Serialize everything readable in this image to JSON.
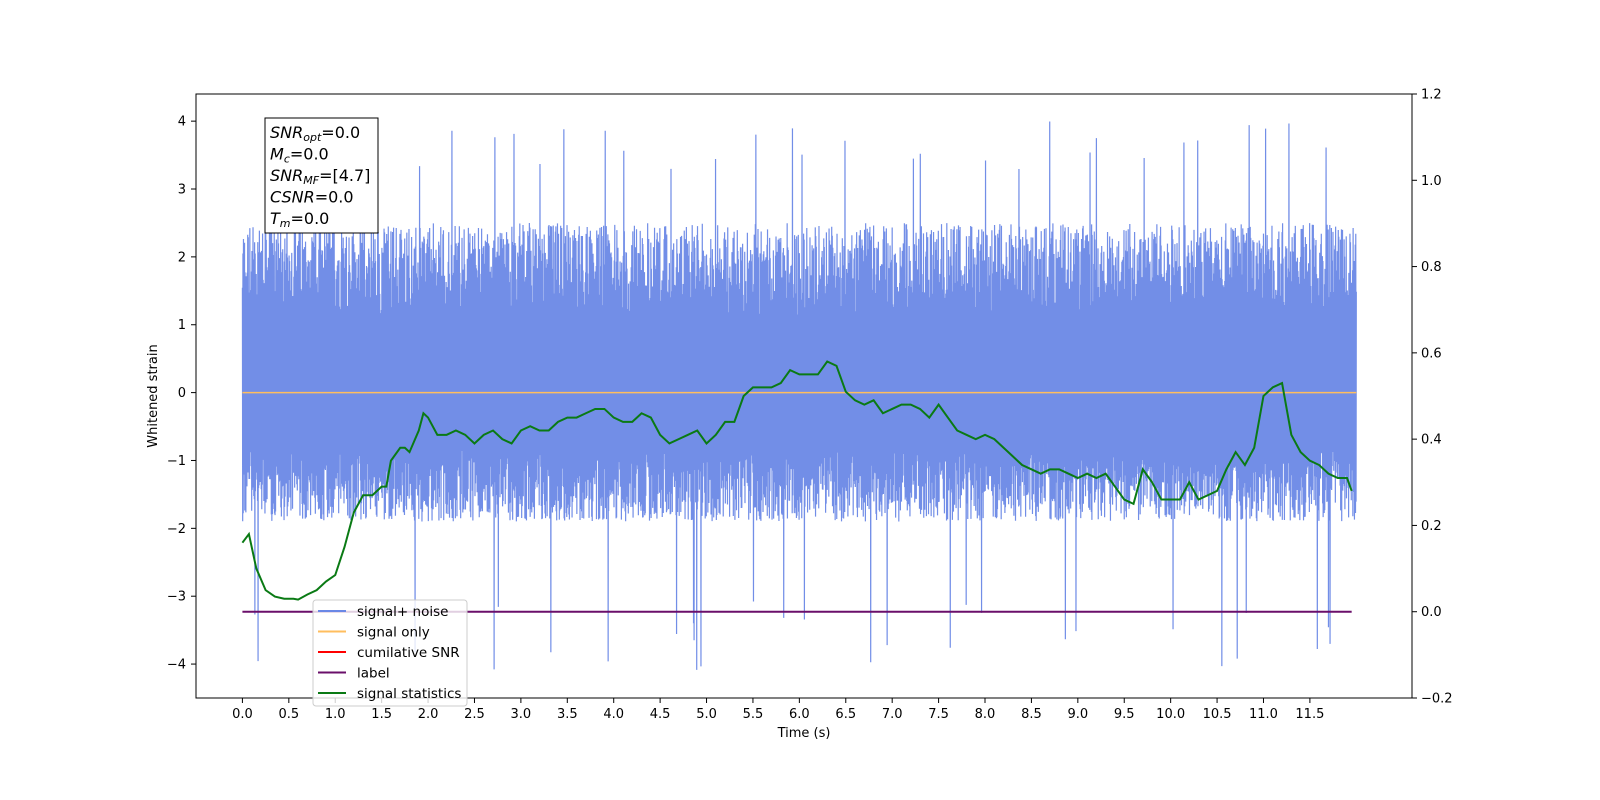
{
  "chart_data": {
    "type": "line",
    "xlabel": "Time (s)",
    "ylabel": "Whitened strain",
    "xlim": [
      -0.5,
      12.6
    ],
    "ylim_left": [
      -4.5,
      4.4
    ],
    "ylim_right": [
      -0.2,
      1.2
    ],
    "x_ticks": [
      0.0,
      0.5,
      1.0,
      1.5,
      2.0,
      2.5,
      3.0,
      3.5,
      4.0,
      4.5,
      5.0,
      5.5,
      6.0,
      6.5,
      7.0,
      7.5,
      8.0,
      8.5,
      9.0,
      9.5,
      10.0,
      10.5,
      11.0,
      11.5
    ],
    "x_tick_labels": [
      "0.0",
      "0.5",
      "1.0",
      "1.5",
      "2.0",
      "2.5",
      "3.0",
      "3.5",
      "4.0",
      "4.5",
      "5.0",
      "5.5",
      "6.0",
      "6.5",
      "7.0",
      "7.5",
      "8.0",
      "8.5",
      "9.0",
      "9.5",
      "10.0",
      "10.5",
      "11.0",
      "11.5"
    ],
    "y_left_ticks": [
      4,
      3,
      2,
      1,
      0,
      -1,
      -2,
      -3,
      -4
    ],
    "y_left_tick_labels": [
      "4",
      "3",
      "2",
      "1",
      "0",
      "−1",
      "−2",
      "−3",
      "−4"
    ],
    "y_right_ticks": [
      1.2,
      1.0,
      0.8,
      0.6,
      0.4,
      0.2,
      0.0,
      -0.2
    ],
    "y_right_tick_labels": [
      "1.2",
      "1.0",
      "0.8",
      "0.6",
      "0.4",
      "0.2",
      "0.0",
      "−0.2"
    ],
    "legend_position": "lower-left",
    "series": [
      {
        "name": "signal+ noise",
        "color": "#6a88e6",
        "axis": "left",
        "x_range": [
          0.0,
          12.0
        ],
        "typical_range": [
          -1.9,
          2.5
        ],
        "max_value": 4.05,
        "min_value": -4.1
      },
      {
        "name": "signal only",
        "color": "#ffbe5e",
        "axis": "left",
        "x": [
          0.0,
          12.0
        ],
        "values": [
          0.0,
          0.0
        ]
      },
      {
        "name": "cumilative SNR",
        "color": "#ff0000",
        "axis": "right",
        "x": [],
        "values": []
      },
      {
        "name": "label",
        "color": "#6a0f6a",
        "axis": "right",
        "x": [
          0.0,
          11.95
        ],
        "values": [
          0.0,
          0.0
        ]
      },
      {
        "name": "signal statistics",
        "color": "#0a7a14",
        "axis": "right",
        "x": [],
        "values": []
      }
    ],
    "statistics_curve": {
      "x": [
        0.0,
        0.07,
        0.15,
        0.25,
        0.35,
        0.45,
        0.55,
        0.6,
        0.7,
        0.8,
        0.9,
        1.0,
        1.1,
        1.2,
        1.3,
        1.4,
        1.5,
        1.55,
        1.6,
        1.7,
        1.75,
        1.8,
        1.9,
        1.95,
        2.0,
        2.1,
        2.2,
        2.3,
        2.4,
        2.5,
        2.6,
        2.7,
        2.8,
        2.9,
        3.0,
        3.1,
        3.2,
        3.3,
        3.4,
        3.5,
        3.6,
        3.7,
        3.8,
        3.9,
        4.0,
        4.1,
        4.2,
        4.3,
        4.4,
        4.5,
        4.6,
        4.7,
        4.8,
        4.9,
        5.0,
        5.1,
        5.2,
        5.3,
        5.4,
        5.5,
        5.6,
        5.7,
        5.8,
        5.9,
        6.0,
        6.1,
        6.2,
        6.3,
        6.4,
        6.5,
        6.6,
        6.7,
        6.8,
        6.9,
        7.0,
        7.1,
        7.2,
        7.3,
        7.4,
        7.5,
        7.6,
        7.7,
        7.8,
        7.9,
        8.0,
        8.1,
        8.2,
        8.3,
        8.4,
        8.5,
        8.6,
        8.7,
        8.8,
        8.9,
        9.0,
        9.1,
        9.2,
        9.3,
        9.4,
        9.5,
        9.6,
        9.7,
        9.8,
        9.9,
        10.0,
        10.1,
        10.2,
        10.3,
        10.4,
        10.5,
        10.6,
        10.7,
        10.8,
        10.9,
        11.0,
        11.1,
        11.2,
        11.3,
        11.4,
        11.5,
        11.6,
        11.7,
        11.8,
        11.9,
        11.95
      ],
      "values": [
        0.16,
        0.18,
        0.1,
        0.05,
        0.035,
        0.03,
        0.03,
        0.028,
        0.04,
        0.05,
        0.07,
        0.085,
        0.15,
        0.23,
        0.27,
        0.27,
        0.29,
        0.29,
        0.35,
        0.38,
        0.38,
        0.37,
        0.42,
        0.46,
        0.45,
        0.41,
        0.41,
        0.42,
        0.41,
        0.39,
        0.41,
        0.42,
        0.4,
        0.39,
        0.42,
        0.43,
        0.42,
        0.42,
        0.44,
        0.45,
        0.45,
        0.46,
        0.47,
        0.47,
        0.45,
        0.44,
        0.44,
        0.46,
        0.45,
        0.41,
        0.39,
        0.4,
        0.41,
        0.42,
        0.39,
        0.41,
        0.44,
        0.44,
        0.5,
        0.52,
        0.52,
        0.52,
        0.53,
        0.56,
        0.55,
        0.55,
        0.55,
        0.58,
        0.57,
        0.51,
        0.49,
        0.48,
        0.49,
        0.46,
        0.47,
        0.48,
        0.48,
        0.47,
        0.45,
        0.48,
        0.45,
        0.42,
        0.41,
        0.4,
        0.41,
        0.4,
        0.38,
        0.36,
        0.34,
        0.33,
        0.32,
        0.33,
        0.33,
        0.32,
        0.31,
        0.32,
        0.31,
        0.32,
        0.29,
        0.26,
        0.25,
        0.33,
        0.3,
        0.26,
        0.26,
        0.26,
        0.3,
        0.26,
        0.27,
        0.28,
        0.33,
        0.37,
        0.34,
        0.38,
        0.5,
        0.52,
        0.53,
        0.41,
        0.37,
        0.35,
        0.34,
        0.32,
        0.31,
        0.31,
        0.28
      ]
    },
    "info_box": {
      "lines": [
        {
          "var": "SNR",
          "sub": "opt",
          "value": "=0.0"
        },
        {
          "var": "M",
          "sub": "c",
          "value": "=0.0"
        },
        {
          "var": "SNR",
          "sub": "MF",
          "value": "=[4.7]"
        },
        {
          "var": "CSNR",
          "sub": "",
          "value": "=0.0"
        },
        {
          "var": "T",
          "sub": "m",
          "value": "=0.0"
        }
      ]
    }
  }
}
